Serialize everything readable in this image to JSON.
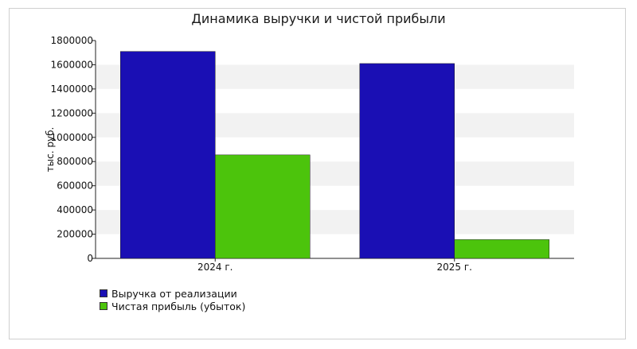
{
  "chart_data": {
    "type": "bar",
    "title": "Динамика выручки и чистой прибыли",
    "ylabel": "тыс. руб.",
    "xlabel": "",
    "categories": [
      "2024 г.",
      "2025 г."
    ],
    "series": [
      {
        "name": "Выручка от реализации",
        "color": "#1a0fb4",
        "values": [
          1710000,
          1610000
        ]
      },
      {
        "name": "Чистая прибыль (убыток)",
        "color": "#4cc40c",
        "values": [
          855000,
          155000
        ]
      }
    ],
    "ylim": [
      0,
      1800000
    ],
    "yticks": [
      0,
      200000,
      400000,
      600000,
      800000,
      1000000,
      1200000,
      1400000,
      1600000,
      1800000
    ],
    "ytick_labels": [
      "0",
      "200000",
      "400000",
      "600000",
      "800000",
      "1000000",
      "1200000",
      "1400000",
      "1600000",
      "1800000"
    ],
    "grid": "alternating horizontal bands",
    "legend_position": "bottom-left"
  }
}
